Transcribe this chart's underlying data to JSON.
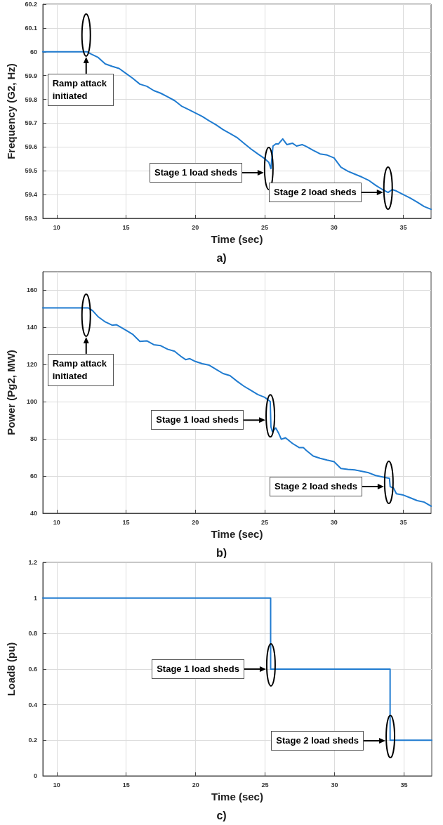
{
  "chart_data": [
    {
      "type": "line",
      "title": "a)",
      "xlabel": "Time (sec)",
      "ylabel": "Frequency (G2, Hz)",
      "xlim": [
        9,
        37
      ],
      "xticks": [
        10,
        15,
        20,
        25,
        30,
        35
      ],
      "ylim": [
        59.3,
        60.2
      ],
      "yticks": [
        59.3,
        59.4,
        59.5,
        59.6,
        59.7,
        59.8,
        59.9,
        60,
        60.1,
        60.2
      ],
      "grid": true,
      "x": [
        9,
        12.2,
        12.5,
        13,
        13.5,
        14,
        14.5,
        15,
        15.5,
        16,
        16.5,
        17,
        17.5,
        18,
        18.5,
        19,
        19.5,
        20,
        20.5,
        21,
        21.5,
        22,
        22.5,
        23,
        23.5,
        24,
        24.5,
        25,
        25.3,
        25.45,
        25.6,
        25.8,
        26,
        26.3,
        26.6,
        27,
        27.3,
        27.7,
        28,
        28.5,
        29,
        29.5,
        30,
        30.5,
        31,
        31.5,
        32,
        32.5,
        33,
        33.5,
        33.9,
        34.2,
        34.5,
        35,
        35.5,
        36,
        36.5,
        37
      ],
      "series": [
        {
          "color": "#1f7bd0",
          "values": [
            60,
            60,
            59.99,
            59.976,
            59.949,
            59.939,
            59.93,
            59.909,
            59.888,
            59.864,
            59.855,
            59.837,
            59.826,
            59.811,
            59.795,
            59.772,
            59.758,
            59.743,
            59.728,
            59.71,
            59.693,
            59.673,
            59.657,
            59.64,
            59.616,
            59.592,
            59.571,
            59.551,
            59.535,
            59.509,
            59.604,
            59.613,
            59.613,
            59.634,
            59.61,
            59.616,
            59.604,
            59.61,
            59.602,
            59.586,
            59.571,
            59.566,
            59.554,
            59.515,
            59.498,
            59.486,
            59.474,
            59.46,
            59.439,
            59.421,
            59.409,
            59.421,
            59.415,
            59.4,
            59.385,
            59.368,
            59.35,
            59.338
          ]
        }
      ],
      "annotations": [
        "Ramp attack initiated",
        "Stage 1 load sheds",
        "Stage 2 load sheds"
      ]
    },
    {
      "type": "line",
      "title": "b)",
      "xlabel": "Time (sec)",
      "ylabel": "Power (Pg2, MW)",
      "xlim": [
        9,
        37
      ],
      "xticks": [
        10,
        15,
        20,
        25,
        30,
        35
      ],
      "ylim": [
        40,
        170
      ],
      "yticks": [
        40,
        60,
        80,
        100,
        120,
        140,
        160
      ],
      "grid": true,
      "x": [
        9,
        12.3,
        12.6,
        13,
        13.5,
        14,
        14.3,
        15,
        15.5,
        16,
        16.5,
        17,
        17.5,
        18,
        18.5,
        19,
        19.3,
        19.6,
        20,
        20.5,
        21,
        21.5,
        22,
        22.5,
        23,
        23.5,
        24,
        24.5,
        25,
        25.4,
        25.45,
        25.55,
        25.8,
        26,
        26.2,
        26.5,
        27,
        27.5,
        27.8,
        28,
        28.5,
        29,
        29.5,
        30,
        30.5,
        31,
        31.5,
        32,
        32.5,
        33,
        33.8,
        34,
        34.05,
        34.3,
        34.5,
        35,
        35.5,
        36,
        36.5,
        37
      ],
      "series": [
        {
          "color": "#1f7bd0",
          "values": [
            150.5,
            150.5,
            149,
            145.7,
            143,
            141.2,
            141.5,
            138.5,
            136.2,
            132.5,
            132.8,
            130.7,
            130.2,
            128.3,
            127.2,
            124.2,
            122.7,
            123.2,
            121.7,
            120.5,
            119.7,
            117.4,
            115.2,
            114.1,
            111.1,
            108.4,
            106.2,
            103.9,
            102.4,
            100.2,
            86.6,
            84,
            85.9,
            83.2,
            79.8,
            80.6,
            77.6,
            75.3,
            75.3,
            73.8,
            70.8,
            69.6,
            68.6,
            67.8,
            64.1,
            63.6,
            63.3,
            62.6,
            61.8,
            60.3,
            59.1,
            58.8,
            54.3,
            53.5,
            50.5,
            49.8,
            48.3,
            46.8,
            46,
            43.8
          ]
        }
      ],
      "annotations": [
        "Ramp attack initiated",
        "Stage 1 load sheds",
        "Stage 2 load sheds"
      ]
    },
    {
      "type": "step",
      "title": "c)",
      "xlabel": "Time (sec)",
      "ylabel": "Load8 (pu)",
      "xlim": [
        9,
        37
      ],
      "xticks": [
        10,
        15,
        20,
        25,
        30,
        35
      ],
      "ylim": [
        0,
        1.2
      ],
      "yticks": [
        0,
        0.2,
        0.4,
        0.6,
        0.8,
        1,
        1.2
      ],
      "grid": true,
      "x": [
        9,
        25.4,
        34,
        37
      ],
      "series": [
        {
          "color": "#1f7bd0",
          "values": [
            1,
            0.6,
            0.2,
            0.2
          ]
        }
      ],
      "annotations": [
        "Stage 1 load sheds",
        "Stage 2 load sheds"
      ]
    }
  ]
}
